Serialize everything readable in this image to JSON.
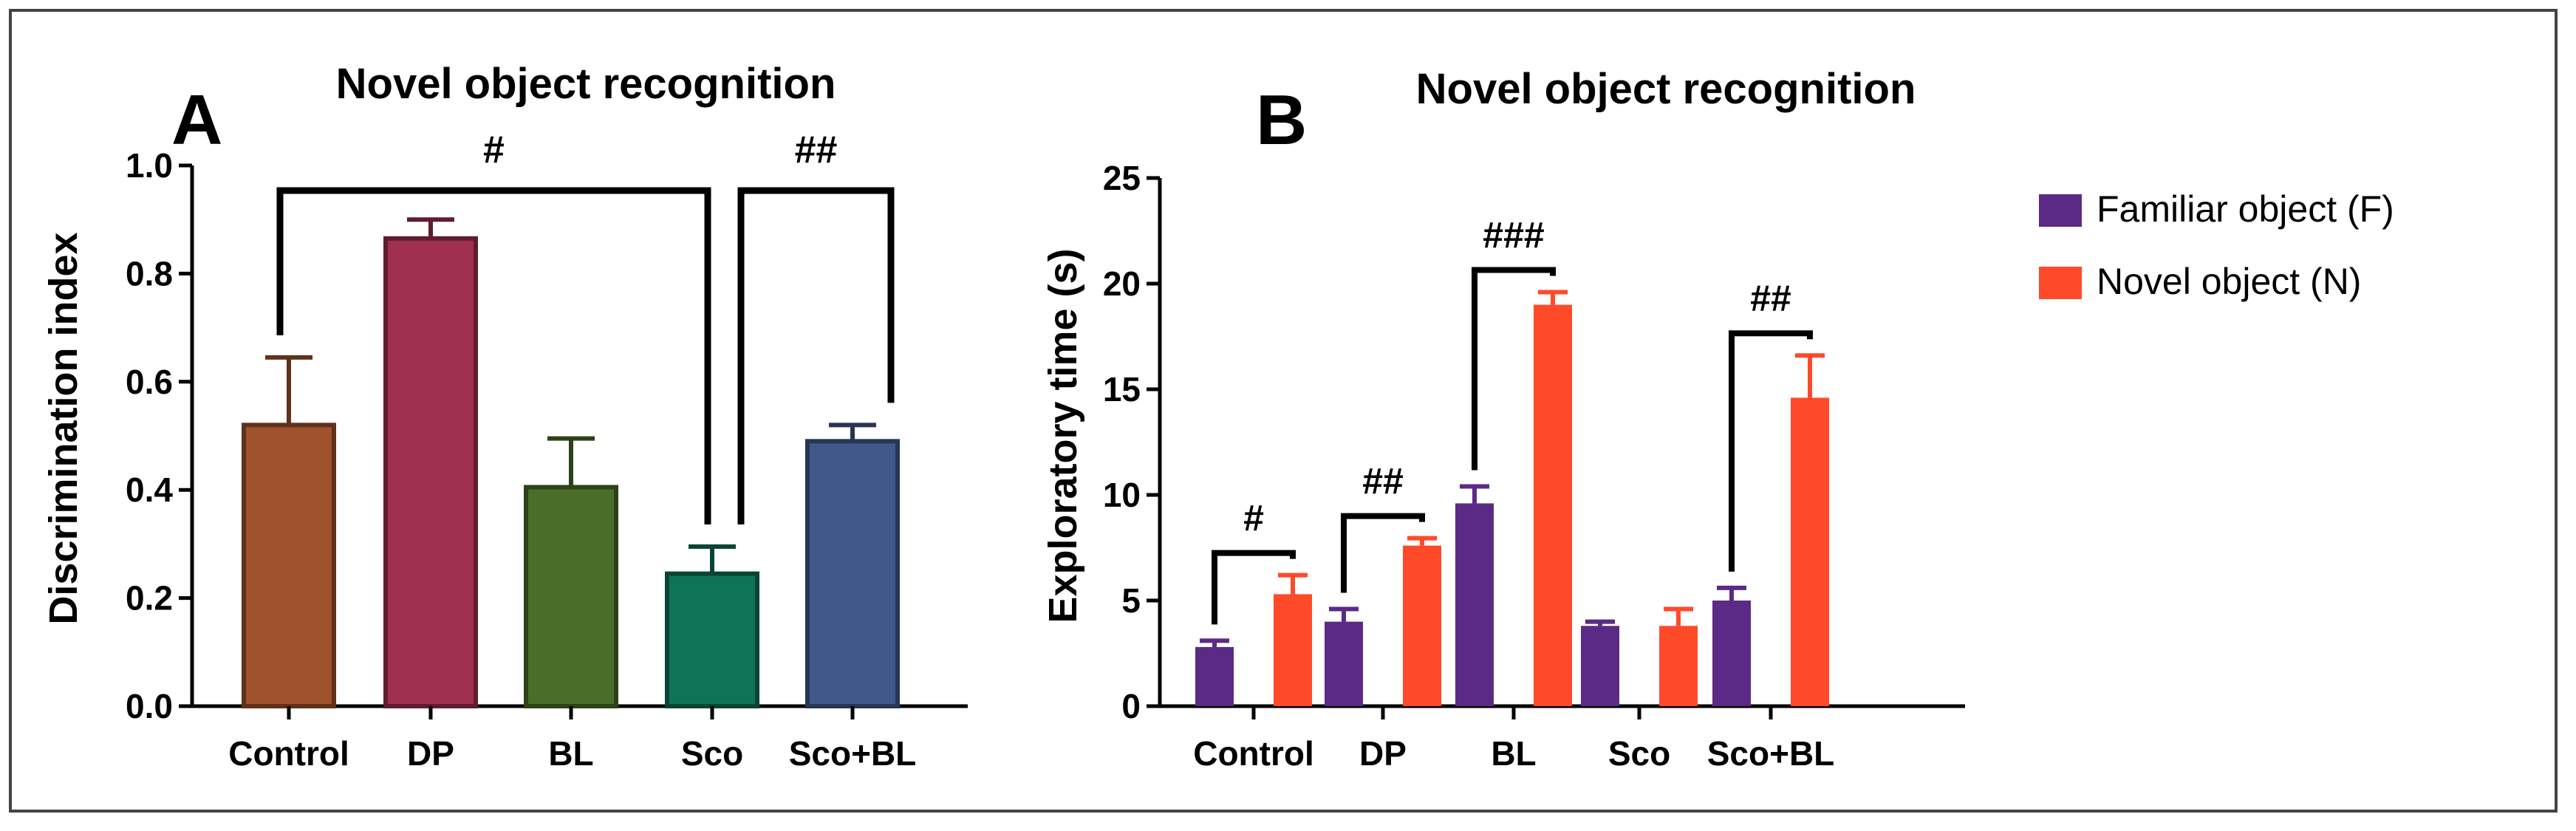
{
  "chart_data": [
    {
      "panel_label": "A",
      "type": "bar",
      "title": "Novel object recognition",
      "xlabel": "",
      "ylabel": "Discrimination index",
      "ylim": [
        0,
        1.0
      ],
      "yticks": [
        "0.0",
        "0.2",
        "0.4",
        "0.6",
        "0.8",
        "1.0"
      ],
      "categories": [
        "Control",
        "DP",
        "BL",
        "Sco",
        "Sco+BL"
      ],
      "values": [
        0.52,
        0.865,
        0.405,
        0.245,
        0.49
      ],
      "errors": [
        0.125,
        0.035,
        0.09,
        0.05,
        0.03
      ],
      "colors": [
        "#a0522d",
        "#a03050",
        "#4a6e2a",
        "#0f7357",
        "#3f5a8a"
      ],
      "annotations": [
        {
          "label": "#",
          "from": "Control",
          "to": "Sco"
        },
        {
          "label": "##",
          "from": "Sco",
          "to": "Sco+BL"
        }
      ]
    },
    {
      "panel_label": "B",
      "type": "bar",
      "title": "Novel object recognition",
      "xlabel": "",
      "ylabel": "Exploratory time (s)",
      "ylim": [
        0,
        25
      ],
      "yticks": [
        "0",
        "5",
        "10",
        "15",
        "20",
        "25"
      ],
      "categories": [
        "Control",
        "DP",
        "BL",
        "Sco",
        "Sco+BL"
      ],
      "series": [
        {
          "name": "Familiar object (F)",
          "color": "#5b2a86",
          "values": [
            2.8,
            4.0,
            9.6,
            3.8,
            5.0
          ],
          "errors": [
            0.3,
            0.6,
            0.8,
            0.2,
            0.6
          ]
        },
        {
          "name": "Novel object (N)",
          "color": "#ff4a2a",
          "values": [
            5.3,
            7.6,
            19.0,
            3.8,
            14.6
          ],
          "errors": [
            0.9,
            0.35,
            0.6,
            0.8,
            2.0
          ]
        }
      ],
      "annotations": [
        {
          "label": "#",
          "category": "Control"
        },
        {
          "label": "##",
          "category": "DP"
        },
        {
          "label": "###",
          "category": "BL"
        },
        {
          "label": "##",
          "category": "Sco+BL"
        }
      ],
      "legend_position": "top-right"
    }
  ]
}
